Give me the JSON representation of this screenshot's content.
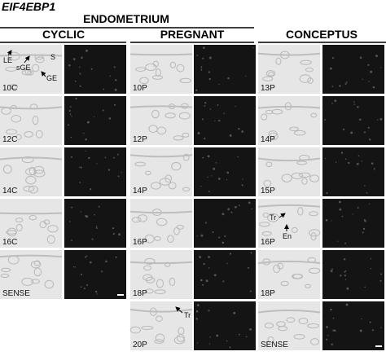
{
  "figure": {
    "title": "EIF4EBP1",
    "groups": [
      {
        "label": "ENDOMETRIUM"
      },
      {
        "label": "CONCEPTUS"
      }
    ],
    "subgroups": [
      {
        "label": "CYCLIC"
      },
      {
        "label": "PREGNANT"
      }
    ],
    "panels": {
      "cyclic": [
        "10C",
        "12C",
        "14C",
        "16C",
        "SENSE"
      ],
      "pregnant": [
        "10P",
        "12P",
        "14P",
        "16P",
        "18P",
        "20P"
      ],
      "conceptus": [
        "13P",
        "14P",
        "15P",
        "16P",
        "18P",
        "SENSE"
      ]
    },
    "annotations": [
      "LE",
      "sGE",
      "S",
      "GE",
      "Tr",
      "En",
      "Tr"
    ]
  }
}
